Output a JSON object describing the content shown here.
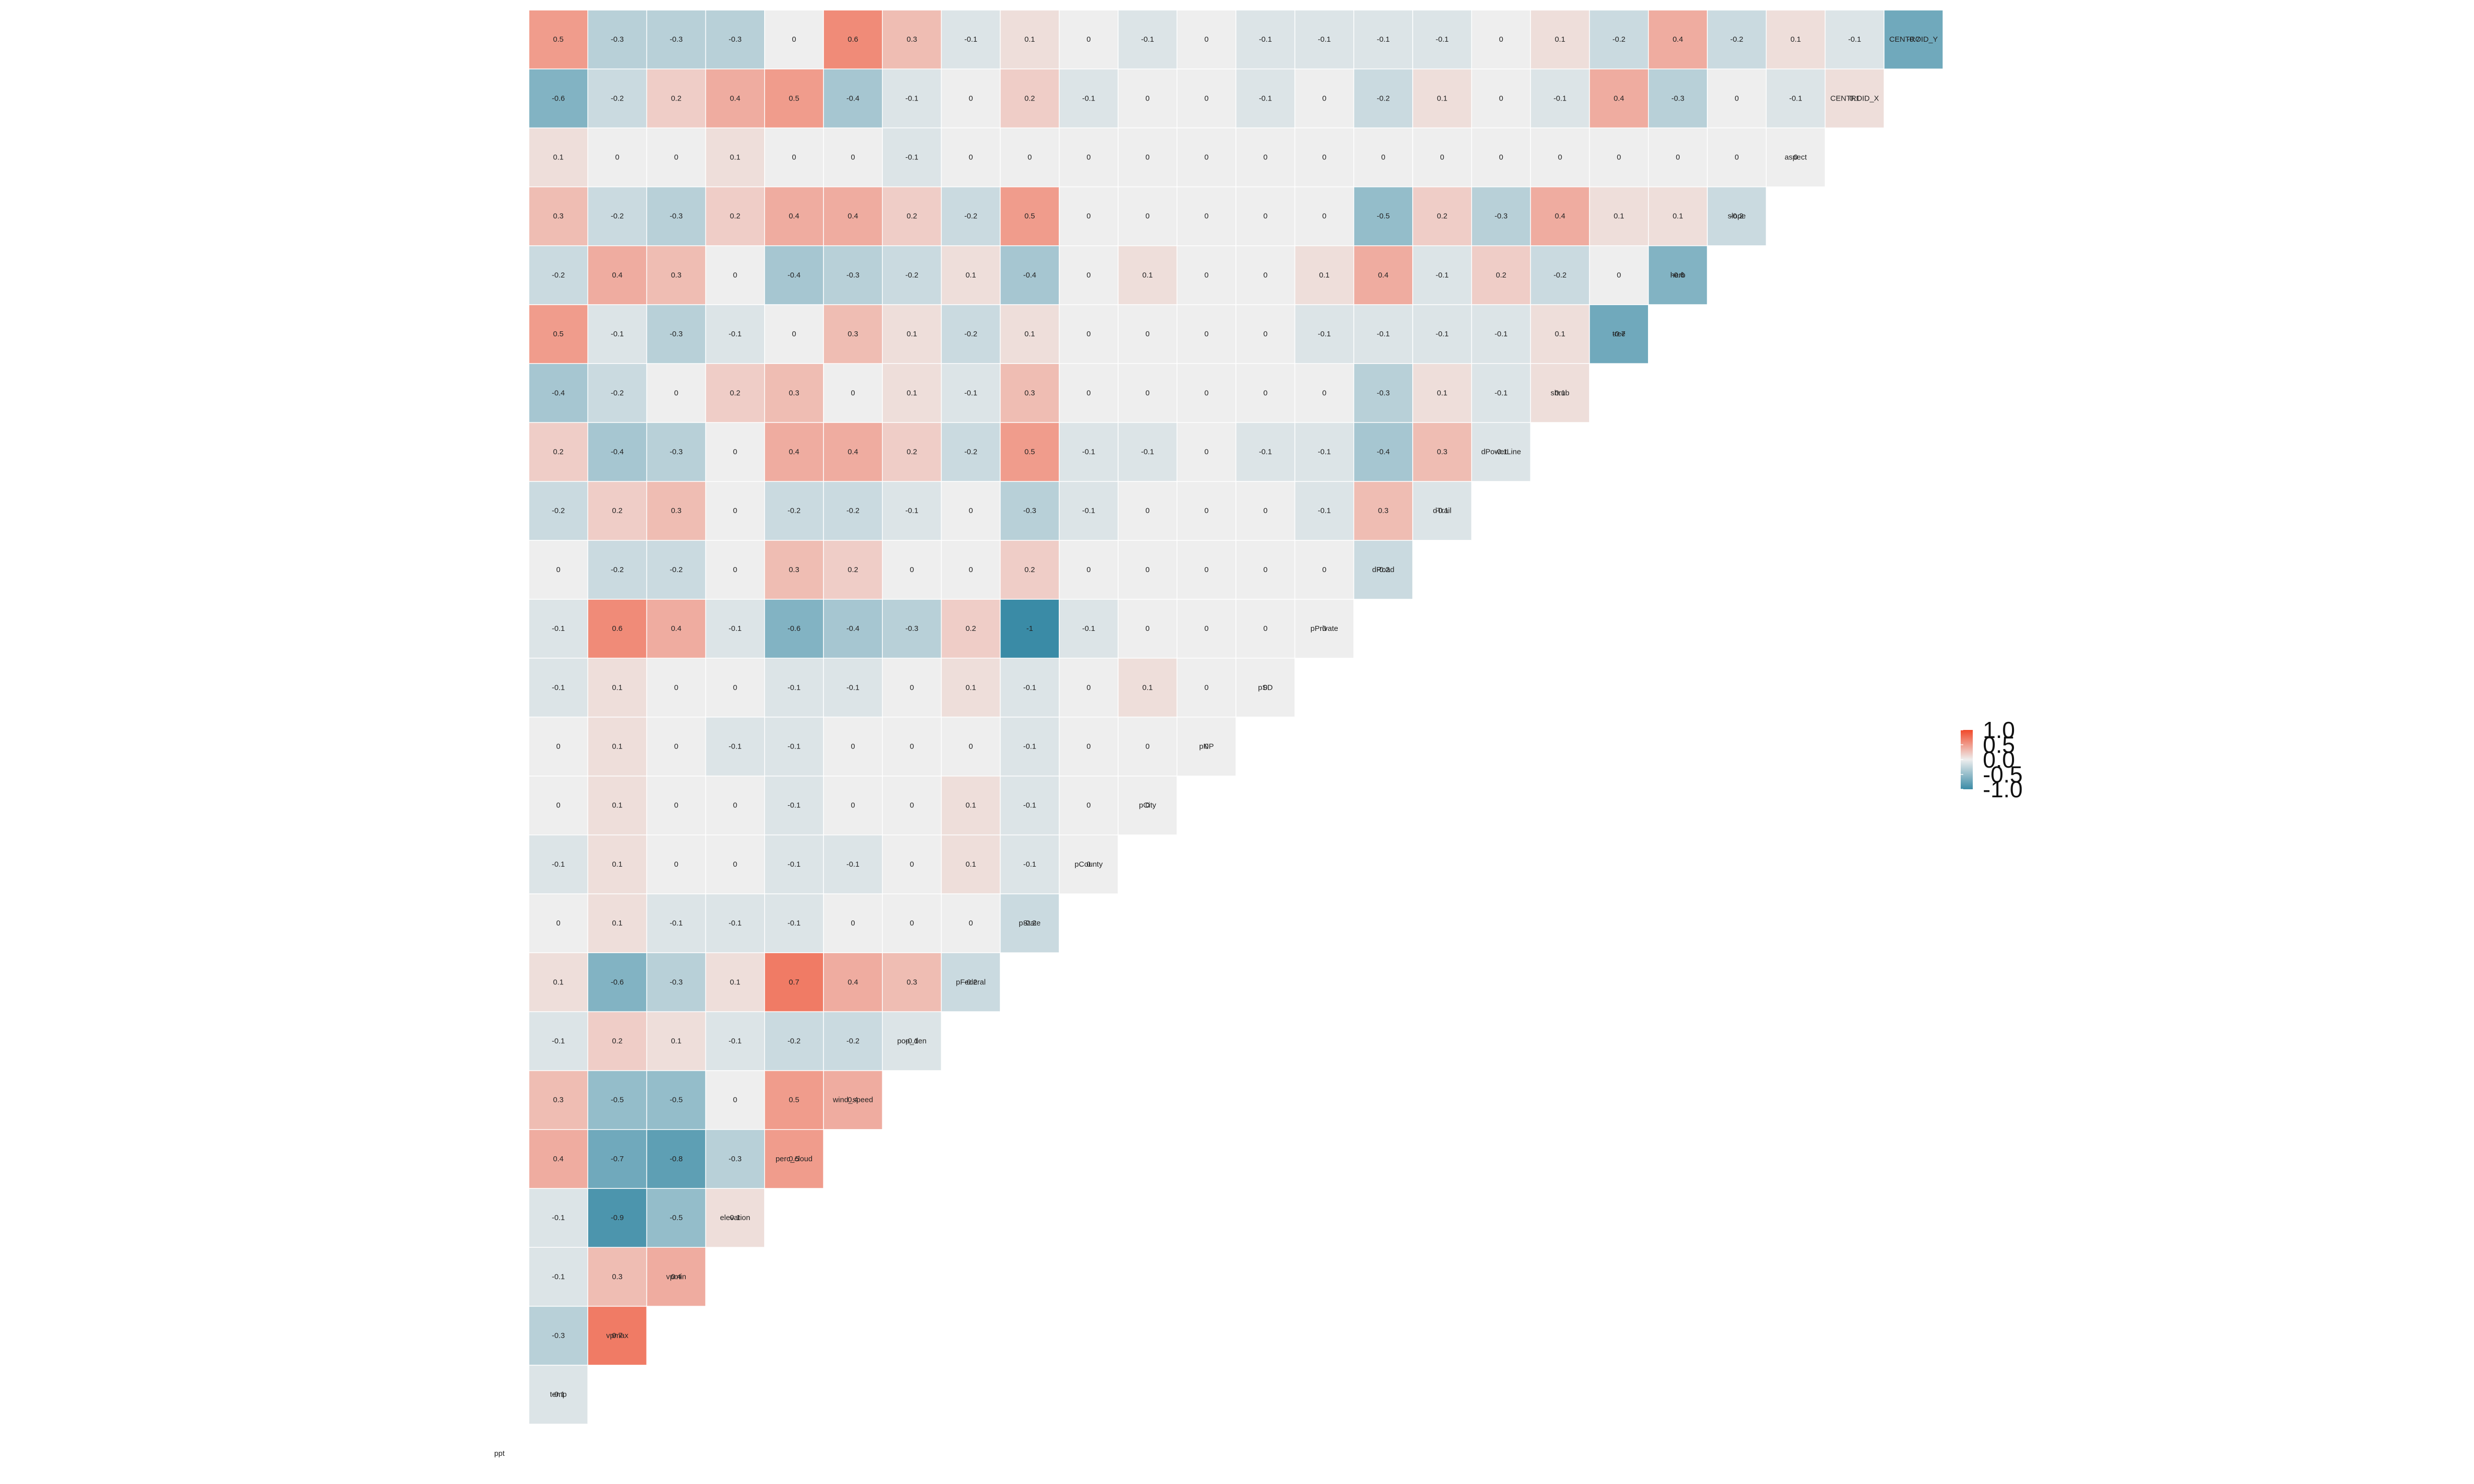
{
  "chart_data": {
    "type": "heatmap",
    "subtype": "correlation-lower-triangle",
    "title": "",
    "xlabel": "",
    "ylabel": "",
    "variables": [
      "ppt",
      "temp",
      "vpmax",
      "vpmin",
      "elevation",
      "perc_cloud",
      "wind_speed",
      "pop_den",
      "pFederal",
      "pState",
      "pCounty",
      "pCity",
      "pNP",
      "pSD",
      "pPrivate",
      "dRoad",
      "dTrail",
      "dPowerLine",
      "shrub",
      "tree",
      "herb",
      "slope",
      "aspect",
      "CENTROID_X",
      "CENTROID_Y"
    ],
    "matrix": [
      [],
      [
        "-0.1"
      ],
      [
        "-0.3",
        "0.7"
      ],
      [
        "-0.1",
        "0.3",
        "0.4"
      ],
      [
        "-0.1",
        "-0.9",
        "-0.5",
        "0.1"
      ],
      [
        "0.4",
        "-0.7",
        "-0.8",
        "-0.3",
        "0.5"
      ],
      [
        "0.3",
        "-0.5",
        "-0.5",
        "0",
        "0.5",
        "0.4"
      ],
      [
        "-0.1",
        "0.2",
        "0.1",
        "-0.1",
        "-0.2",
        "-0.2",
        "-0.1"
      ],
      [
        "0.1",
        "-0.6",
        "-0.3",
        "0.1",
        "0.7",
        "0.4",
        "0.3",
        "-0.2"
      ],
      [
        "0",
        "0.1",
        "-0.1",
        "-0.1",
        "-0.1",
        "0",
        "0",
        "0",
        "-0.2"
      ],
      [
        "-0.1",
        "0.1",
        "0",
        "0",
        "-0.1",
        "-0.1",
        "0",
        "0.1",
        "-0.1",
        "0"
      ],
      [
        "0",
        "0.1",
        "0",
        "0",
        "-0.1",
        "0",
        "0",
        "0.1",
        "-0.1",
        "0",
        "0"
      ],
      [
        "0",
        "0.1",
        "0",
        "-0.1",
        "-0.1",
        "0",
        "0",
        "0",
        "-0.1",
        "0",
        "0",
        "0"
      ],
      [
        "-0.1",
        "0.1",
        "0",
        "0",
        "-0.1",
        "-0.1",
        "0",
        "0.1",
        "-0.1",
        "0",
        "0.1",
        "0",
        "0"
      ],
      [
        "-0.1",
        "0.6",
        "0.4",
        "-0.1",
        "-0.6",
        "-0.4",
        "-0.3",
        "0.2",
        "-1",
        "-0.1",
        "0",
        "0",
        "0",
        "0"
      ],
      [
        "0",
        "-0.2",
        "-0.2",
        "0",
        "0.3",
        "0.2",
        "0",
        "0",
        "0.2",
        "0",
        "0",
        "0",
        "0",
        "0",
        "-0.2"
      ],
      [
        "-0.2",
        "0.2",
        "0.3",
        "0",
        "-0.2",
        "-0.2",
        "-0.1",
        "0",
        "-0.3",
        "-0.1",
        "0",
        "0",
        "0",
        "-0.1",
        "0.3",
        "-0.1"
      ],
      [
        "0.2",
        "-0.4",
        "-0.3",
        "0",
        "0.4",
        "0.4",
        "0.2",
        "-0.2",
        "0.5",
        "-0.1",
        "-0.1",
        "0",
        "-0.1",
        "-0.1",
        "-0.4",
        "0.3",
        "-0.1"
      ],
      [
        "-0.4",
        "-0.2",
        "0",
        "0.2",
        "0.3",
        "0",
        "0.1",
        "-0.1",
        "0.3",
        "0",
        "0",
        "0",
        "0",
        "0",
        "-0.3",
        "0.1",
        "-0.1",
        "0.1"
      ],
      [
        "0.5",
        "-0.1",
        "-0.3",
        "-0.1",
        "0",
        "0.3",
        "0.1",
        "-0.2",
        "0.1",
        "0",
        "0",
        "0",
        "0",
        "-0.1",
        "-0.1",
        "-0.1",
        "-0.1",
        "0.1",
        "-0.7"
      ],
      [
        "-0.2",
        "0.4",
        "0.3",
        "0",
        "-0.4",
        "-0.3",
        "-0.2",
        "0.1",
        "-0.4",
        "0",
        "0.1",
        "0",
        "0",
        "0.1",
        "0.4",
        "-0.1",
        "0.2",
        "-0.2",
        "0",
        "-0.6"
      ],
      [
        "0.3",
        "-0.2",
        "-0.3",
        "0.2",
        "0.4",
        "0.4",
        "0.2",
        "-0.2",
        "0.5",
        "0",
        "0",
        "0",
        "0",
        "0",
        "-0.5",
        "0.2",
        "-0.3",
        "0.4",
        "0.1",
        "0.1",
        "-0.2"
      ],
      [
        "0.1",
        "0",
        "0",
        "0.1",
        "0",
        "0",
        "-0.1",
        "0",
        "0",
        "0",
        "0",
        "0",
        "0",
        "0",
        "0",
        "0",
        "0",
        "0",
        "0",
        "0",
        "0",
        "0"
      ],
      [
        "-0.6",
        "-0.2",
        "0.2",
        "0.4",
        "0.5",
        "-0.4",
        "-0.1",
        "0",
        "0.2",
        "-0.1",
        "0",
        "0",
        "-0.1",
        "0",
        "-0.2",
        "0.1",
        "0",
        "-0.1",
        "0.4",
        "-0.3",
        "0",
        "-0.1",
        "0.1"
      ],
      [
        "0.5",
        "-0.3",
        "-0.3",
        "-0.3",
        "0",
        "0.6",
        "0.3",
        "-0.1",
        "0.1",
        "0",
        "-0.1",
        "0",
        "-0.1",
        "-0.1",
        "-0.1",
        "-0.1",
        "0",
        "0.1",
        "-0.2",
        "0.4",
        "-0.2",
        "0.1",
        "-0.1",
        "-0.7"
      ]
    ],
    "color_scale": {
      "low": "#3a8ba6",
      "mid": "#eeeeee",
      "high": "#f1492a",
      "range": [
        -1,
        1
      ]
    },
    "legend": {
      "position": "right",
      "labels": [
        "1.0",
        "0.5",
        "0.0",
        "-0.5",
        "-1.0"
      ]
    }
  }
}
